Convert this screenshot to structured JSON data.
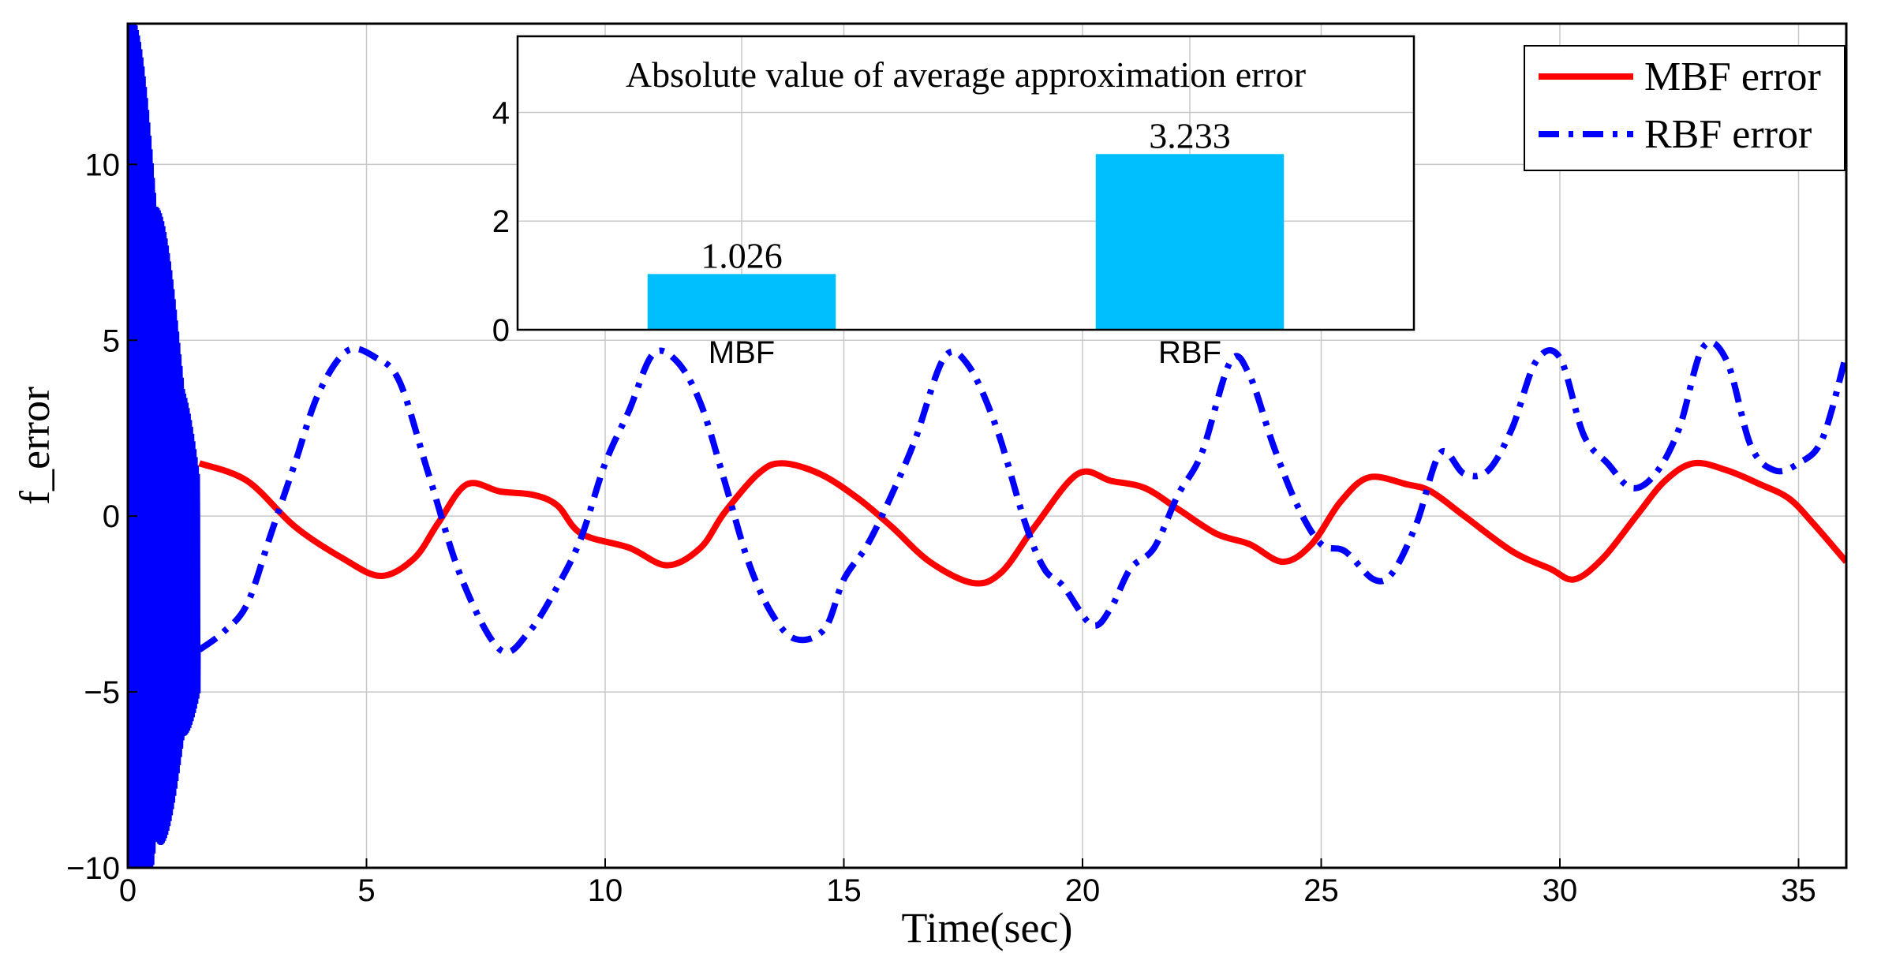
{
  "chart_data": [
    {
      "type": "line",
      "xlabel": "Time(sec)",
      "ylabel": "f_error",
      "xlim": [
        0,
        36
      ],
      "ylim": [
        -10,
        14
      ],
      "xticks": [
        0,
        5,
        10,
        15,
        20,
        25,
        30,
        35
      ],
      "yticks": [
        -10,
        -5,
        0,
        5,
        10
      ],
      "xtick_labels": [
        "0",
        "5",
        "10",
        "15",
        "20",
        "25",
        "30",
        "35"
      ],
      "ytick_labels": [
        "−10",
        "−5",
        "0",
        "5",
        "10"
      ],
      "grid": true,
      "legend_position": "top-right",
      "series": [
        {
          "name": "MBF error",
          "color": "#ff0000",
          "style": "solid",
          "points": [
            [
              1.5,
              1.5
            ],
            [
              2.5,
              1.0
            ],
            [
              3.5,
              -0.3
            ],
            [
              4.5,
              -1.2
            ],
            [
              5.3,
              -1.7
            ],
            [
              6.0,
              -1.2
            ],
            [
              6.5,
              -0.2
            ],
            [
              7.1,
              0.9
            ],
            [
              7.8,
              0.7
            ],
            [
              8.5,
              0.6
            ],
            [
              9.0,
              0.3
            ],
            [
              9.5,
              -0.5
            ],
            [
              10.5,
              -0.9
            ],
            [
              11.3,
              -1.4
            ],
            [
              12.0,
              -0.9
            ],
            [
              12.5,
              0.1
            ],
            [
              13.2,
              1.2
            ],
            [
              13.7,
              1.5
            ],
            [
              14.5,
              1.2
            ],
            [
              15.3,
              0.5
            ],
            [
              16.0,
              -0.3
            ],
            [
              16.8,
              -1.3
            ],
            [
              17.7,
              -1.9
            ],
            [
              18.3,
              -1.6
            ],
            [
              19.0,
              -0.3
            ],
            [
              19.9,
              1.2
            ],
            [
              20.6,
              1.0
            ],
            [
              21.3,
              0.8
            ],
            [
              22.0,
              0.2
            ],
            [
              22.8,
              -0.5
            ],
            [
              23.5,
              -0.8
            ],
            [
              24.2,
              -1.3
            ],
            [
              24.8,
              -0.8
            ],
            [
              25.4,
              0.4
            ],
            [
              26.0,
              1.1
            ],
            [
              26.8,
              0.9
            ],
            [
              27.3,
              0.7
            ],
            [
              28.0,
              0.0
            ],
            [
              29.0,
              -1.0
            ],
            [
              29.8,
              -1.5
            ],
            [
              30.3,
              -1.8
            ],
            [
              30.9,
              -1.2
            ],
            [
              31.6,
              0.0
            ],
            [
              32.2,
              1.0
            ],
            [
              32.8,
              1.5
            ],
            [
              33.5,
              1.3
            ],
            [
              34.2,
              0.9
            ],
            [
              34.8,
              0.5
            ],
            [
              35.3,
              -0.2
            ],
            [
              36.0,
              -1.3
            ]
          ]
        },
        {
          "name": "RBF error",
          "color": "#0000ff",
          "style": "dashdot",
          "points": [
            [
              1.5,
              -3.8
            ],
            [
              2.0,
              -3.3
            ],
            [
              2.5,
              -2.5
            ],
            [
              3.0,
              -0.5
            ],
            [
              3.5,
              1.5
            ],
            [
              4.0,
              3.5
            ],
            [
              4.6,
              4.7
            ],
            [
              5.2,
              4.5
            ],
            [
              5.7,
              3.8
            ],
            [
              6.3,
              1.2
            ],
            [
              7.0,
              -1.8
            ],
            [
              7.8,
              -3.8
            ],
            [
              8.4,
              -3.3
            ],
            [
              9.0,
              -2.0
            ],
            [
              9.5,
              -0.6
            ],
            [
              10.0,
              1.5
            ],
            [
              10.5,
              3.0
            ],
            [
              11.0,
              4.6
            ],
            [
              11.5,
              4.4
            ],
            [
              12.0,
              3.2
            ],
            [
              12.5,
              1.0
            ],
            [
              13.0,
              -1.3
            ],
            [
              13.5,
              -2.8
            ],
            [
              14.0,
              -3.5
            ],
            [
              14.6,
              -3.2
            ],
            [
              15.0,
              -1.8
            ],
            [
              15.5,
              -0.8
            ],
            [
              16.0,
              0.6
            ],
            [
              16.5,
              2.2
            ],
            [
              17.1,
              4.5
            ],
            [
              17.6,
              4.3
            ],
            [
              18.2,
              2.5
            ],
            [
              18.8,
              -0.2
            ],
            [
              19.2,
              -1.5
            ],
            [
              19.6,
              -2.0
            ],
            [
              20.2,
              -3.1
            ],
            [
              20.6,
              -2.6
            ],
            [
              21.0,
              -1.5
            ],
            [
              21.5,
              -0.9
            ],
            [
              22.0,
              0.6
            ],
            [
              22.5,
              1.8
            ],
            [
              23.1,
              4.4
            ],
            [
              23.5,
              4.0
            ],
            [
              24.0,
              2.0
            ],
            [
              24.5,
              0.3
            ],
            [
              25.0,
              -0.8
            ],
            [
              25.5,
              -1.0
            ],
            [
              26.1,
              -1.8
            ],
            [
              26.5,
              -1.6
            ],
            [
              27.0,
              -0.2
            ],
            [
              27.5,
              1.8
            ],
            [
              28.0,
              1.2
            ],
            [
              28.5,
              1.3
            ],
            [
              29.0,
              2.5
            ],
            [
              29.5,
              4.4
            ],
            [
              30.0,
              4.5
            ],
            [
              30.5,
              2.3
            ],
            [
              31.0,
              1.5
            ],
            [
              31.5,
              0.8
            ],
            [
              32.0,
              1.2
            ],
            [
              32.5,
              2.5
            ],
            [
              33.0,
              4.8
            ],
            [
              33.5,
              4.4
            ],
            [
              34.0,
              2.0
            ],
            [
              34.5,
              1.3
            ],
            [
              35.0,
              1.5
            ],
            [
              35.5,
              2.2
            ],
            [
              36.0,
              4.6
            ]
          ]
        }
      ]
    },
    {
      "type": "bar",
      "title": "Absolute value of average approximation error",
      "categories": [
        "MBF",
        "RBF"
      ],
      "values": [
        1.026,
        3.233
      ],
      "value_labels": [
        "1.026",
        "3.233"
      ],
      "ylim": [
        0,
        5.4
      ],
      "yticks": [
        0,
        2,
        4
      ],
      "ytick_labels": [
        "0",
        "2",
        "4"
      ],
      "grid": true,
      "bar_color": "#00bfff"
    }
  ]
}
